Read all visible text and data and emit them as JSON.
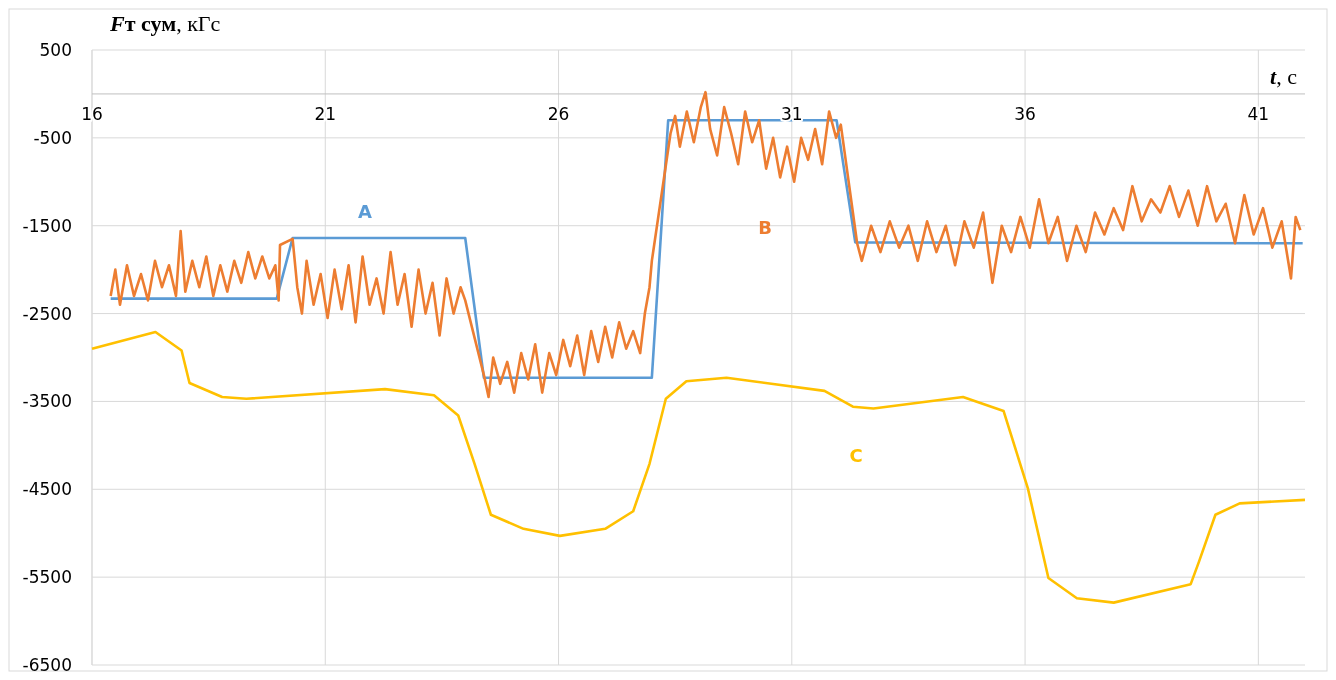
{
  "chart_data": {
    "type": "line",
    "ylabel": "Fт сум, кГс",
    "xlabel": "t, с",
    "xlim": [
      16,
      42
    ],
    "ylim": [
      -6500,
      500
    ],
    "xticks": [
      16,
      21,
      26,
      31,
      36,
      41
    ],
    "yticks": [
      500,
      -500,
      -1500,
      -2500,
      -3500,
      -4500,
      -5500,
      -6500
    ],
    "grid": true,
    "line_style": "solid",
    "marker": "none",
    "series": [
      {
        "name": "A",
        "color": "#5b9bd5",
        "x": [
          16.4,
          19.96,
          20.3,
          24.0,
          24.4,
          28.0,
          28.35,
          31.96,
          32.36,
          41.95
        ],
        "values": [
          -2330,
          -2330,
          -1640,
          -1640,
          -3230,
          -3230,
          -300,
          -300,
          -1690,
          -1700
        ]
      },
      {
        "name": "B",
        "color": "#ed7d31",
        "x": [
          16.4,
          16.5,
          16.6,
          16.75,
          16.9,
          17.05,
          17.2,
          17.35,
          17.5,
          17.65,
          17.8,
          17.9,
          18.0,
          18.15,
          18.3,
          18.45,
          18.6,
          18.75,
          18.9,
          19.05,
          19.2,
          19.35,
          19.5,
          19.65,
          19.8,
          19.93,
          20.0,
          20.03,
          20.3,
          20.4,
          20.5,
          20.6,
          20.75,
          20.9,
          21.05,
          21.2,
          21.35,
          21.5,
          21.65,
          21.8,
          21.95,
          22.1,
          22.25,
          22.4,
          22.55,
          22.7,
          22.85,
          23.0,
          23.15,
          23.3,
          23.45,
          23.6,
          23.75,
          23.9,
          24.0,
          24.4,
          24.5,
          24.6,
          24.75,
          24.9,
          25.05,
          25.2,
          25.35,
          25.5,
          25.65,
          25.8,
          25.95,
          26.1,
          26.25,
          26.4,
          26.55,
          26.7,
          26.85,
          27.0,
          27.15,
          27.3,
          27.45,
          27.6,
          27.75,
          27.85,
          27.95,
          28.0,
          28.4,
          28.5,
          28.6,
          28.75,
          28.9,
          29.05,
          29.15,
          29.25,
          29.4,
          29.55,
          29.7,
          29.85,
          30.0,
          30.15,
          30.3,
          30.45,
          30.6,
          30.75,
          30.9,
          31.05,
          31.2,
          31.35,
          31.5,
          31.65,
          31.8,
          31.95,
          32.05,
          32.4,
          32.5,
          32.7,
          32.9,
          33.1,
          33.3,
          33.5,
          33.7,
          33.9,
          34.1,
          34.3,
          34.5,
          34.7,
          34.9,
          35.1,
          35.3,
          35.5,
          35.7,
          35.9,
          36.1,
          36.3,
          36.5,
          36.7,
          36.9,
          37.1,
          37.3,
          37.5,
          37.7,
          37.9,
          38.1,
          38.3,
          38.5,
          38.7,
          38.9,
          39.1,
          39.3,
          39.5,
          39.7,
          39.9,
          40.1,
          40.3,
          40.5,
          40.7,
          40.9,
          41.1,
          41.3,
          41.5,
          41.7,
          41.8,
          41.9
        ],
        "values": [
          -2300,
          -2000,
          -2400,
          -1950,
          -2300,
          -2050,
          -2350,
          -1900,
          -2200,
          -1950,
          -2300,
          -1560,
          -2250,
          -1900,
          -2200,
          -1850,
          -2300,
          -1950,
          -2250,
          -1900,
          -2150,
          -1800,
          -2100,
          -1850,
          -2100,
          -1950,
          -2350,
          -1720,
          -1650,
          -2200,
          -2500,
          -1900,
          -2400,
          -2050,
          -2550,
          -2000,
          -2450,
          -1950,
          -2600,
          -1850,
          -2400,
          -2100,
          -2500,
          -1800,
          -2400,
          -2050,
          -2650,
          -2000,
          -2500,
          -2150,
          -2750,
          -2100,
          -2500,
          -2200,
          -2350,
          -3200,
          -3450,
          -3000,
          -3300,
          -3050,
          -3400,
          -2950,
          -3250,
          -2850,
          -3400,
          -2950,
          -3200,
          -2800,
          -3100,
          -2750,
          -3200,
          -2700,
          -3050,
          -2650,
          -3000,
          -2600,
          -2900,
          -2700,
          -2950,
          -2500,
          -2200,
          -1900,
          -450,
          -250,
          -600,
          -200,
          -550,
          -150,
          20,
          -400,
          -700,
          -150,
          -450,
          -800,
          -200,
          -550,
          -300,
          -850,
          -500,
          -950,
          -600,
          -1000,
          -500,
          -750,
          -400,
          -800,
          -200,
          -500,
          -350,
          -1700,
          -1900,
          -1500,
          -1800,
          -1450,
          -1750,
          -1500,
          -1900,
          -1450,
          -1800,
          -1500,
          -1950,
          -1450,
          -1750,
          -1350,
          -2150,
          -1500,
          -1800,
          -1400,
          -1750,
          -1200,
          -1700,
          -1400,
          -1900,
          -1500,
          -1800,
          -1350,
          -1600,
          -1300,
          -1550,
          -1050,
          -1450,
          -1200,
          -1350,
          -1050,
          -1400,
          -1100,
          -1500,
          -1050,
          -1450,
          -1250,
          -1700,
          -1150,
          -1600,
          -1300,
          -1750,
          -1450,
          -2100,
          -1400,
          -1550
        ]
      },
      {
        "name": "C",
        "color": "#ffc000",
        "x": [
          16,
          17.36,
          17.92,
          18.09,
          18.79,
          19.31,
          22.28,
          23.33,
          23.85,
          24.2,
          24.55,
          25.25,
          26.03,
          27.0,
          27.6,
          27.95,
          28.3,
          28.74,
          29.6,
          31.7,
          32.31,
          32.75,
          34.67,
          35.54,
          36.06,
          36.5,
          37.11,
          37.9,
          39.55,
          39.73,
          40.08,
          40.6,
          42.0
        ],
        "values": [
          -2900,
          -2710,
          -2920,
          -3290,
          -3450,
          -3470,
          -3360,
          -3430,
          -3660,
          -4210,
          -4790,
          -4950,
          -5030,
          -4950,
          -4750,
          -4210,
          -3470,
          -3270,
          -3230,
          -3380,
          -3560,
          -3580,
          -3450,
          -3610,
          -4490,
          -5510,
          -5740,
          -5790,
          -5580,
          -5320,
          -4790,
          -4660,
          -4620
        ]
      }
    ]
  }
}
